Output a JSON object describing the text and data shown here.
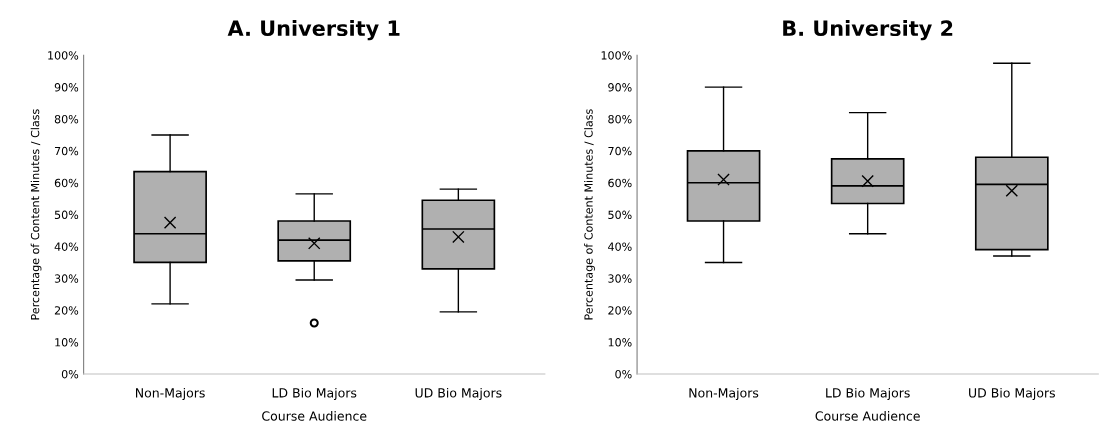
{
  "chart_data": [
    {
      "type": "box",
      "title": "A. University 1",
      "xlabel": "Course Audience",
      "ylabel": "Percentage of Content Minutes / Class",
      "categories": [
        "Non-Majors",
        "LD Bio Majors",
        "UD Bio Majors"
      ],
      "color": "#b0b0b0",
      "grid": false,
      "ylim": [
        0,
        100
      ],
      "yticks": [
        {
          "value": 0,
          "label": "0%"
        },
        {
          "value": 10,
          "label": "10%"
        },
        {
          "value": 20,
          "label": "20%"
        },
        {
          "value": 30,
          "label": "30%"
        },
        {
          "value": 40,
          "label": "40%"
        },
        {
          "value": 50,
          "label": "50%"
        },
        {
          "value": 60,
          "label": "60%"
        },
        {
          "value": 70,
          "label": "70%"
        },
        {
          "value": 80,
          "label": "80%"
        },
        {
          "value": 90,
          "label": "90%"
        },
        {
          "value": 100,
          "label": "100%"
        }
      ],
      "boxes": [
        {
          "low": 22,
          "q1": 35,
          "median": 44,
          "q3": 63.5,
          "high": 75,
          "mean": 47.5
        },
        {
          "low": 29.5,
          "q1": 35.5,
          "median": 42,
          "q3": 48,
          "high": 56.5,
          "mean": 41,
          "outliers": [
            16
          ]
        },
        {
          "low": 19.5,
          "q1": 33,
          "median": 45.5,
          "q3": 54.5,
          "high": 58,
          "mean": 43
        }
      ]
    },
    {
      "type": "box",
      "title": "B. University 2",
      "xlabel": "Course Audience",
      "ylabel": "Percentage of Content Minutes / Class",
      "categories": [
        "Non-Majors",
        "LD Bio Majors",
        "UD Bio Majors"
      ],
      "color": "#b0b0b0",
      "grid": false,
      "ylim": [
        0,
        100
      ],
      "yticks": [
        {
          "value": 0,
          "label": "0%"
        },
        {
          "value": 10,
          "label": "10%"
        },
        {
          "value": 20,
          "label": "20%"
        },
        {
          "value": 30,
          "label": "30%"
        },
        {
          "value": 40,
          "label": "40%"
        },
        {
          "value": 50,
          "label": "50%"
        },
        {
          "value": 60,
          "label": "60%"
        },
        {
          "value": 70,
          "label": "70%"
        },
        {
          "value": 80,
          "label": "80%"
        },
        {
          "value": 90,
          "label": "90%"
        },
        {
          "value": 100,
          "label": "100%"
        }
      ],
      "boxes": [
        {
          "low": 35,
          "q1": 48,
          "median": 60,
          "q3": 70,
          "high": 90,
          "mean": 61
        },
        {
          "low": 44,
          "q1": 53.5,
          "median": 59,
          "q3": 67.5,
          "high": 82,
          "mean": 60.5
        },
        {
          "low": 37,
          "q1": 39,
          "median": 59.5,
          "q3": 68,
          "high": 97.5,
          "mean": 57.5
        }
      ]
    }
  ]
}
